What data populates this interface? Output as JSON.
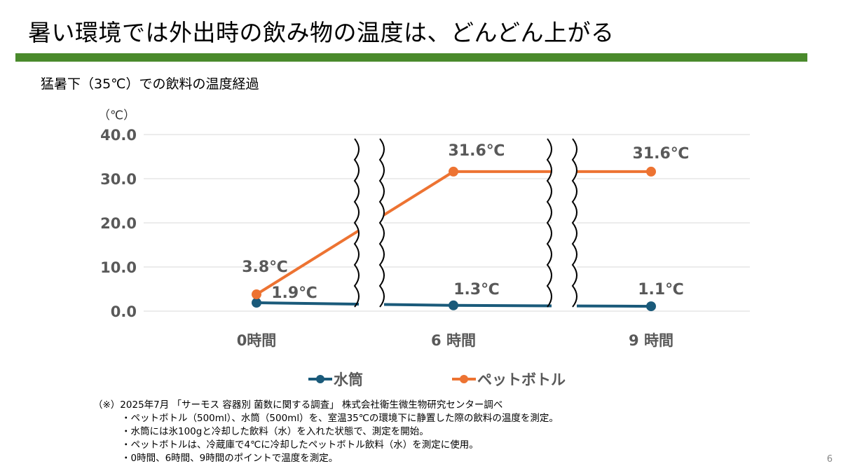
{
  "title": "暑い環境では外出時の飲み物の温度は、どんどん上がる",
  "colors": {
    "accent_bar": "#4a8a2c",
    "water_bottle": "#1a5a7a",
    "pet_bottle": "#ed7332"
  },
  "subtitle": "猛暑下（35℃）での飲料の温度経過",
  "footnotes": {
    "source": "（※）2025年7月 「サーモス 容器別 菌数に関する調査」 株式会社衛生微生物研究センター調べ",
    "notes": [
      "・ペットボトル（500ml）、水筒（500ml）を、室温35℃の環境下に静置した際の飲料の温度を測定。",
      "・水筒には氷100gと冷却した飲料（水）を入れた状態で、測定を開始。",
      "・ペットボトルは、冷蔵庫で4℃に冷却したペットボトル飲料（水）を測定に使用。",
      "・0時間、6時間、9時間のポイントで温度を測定。"
    ]
  },
  "page_number": "6",
  "chart_data": {
    "type": "line",
    "ylabel": "（℃）",
    "ylim": [
      0,
      40
    ],
    "yticks": [
      "0.0",
      "10.0",
      "20.0",
      "30.0",
      "40.0"
    ],
    "ytick_values": [
      0,
      10,
      20,
      30,
      40
    ],
    "categories": [
      "0時間",
      "6 時間",
      "9 時間"
    ],
    "axis_breaks": "between each category",
    "grid": true,
    "legend_position": "bottom",
    "series": [
      {
        "name": "水筒",
        "values": [
          1.9,
          1.3,
          1.1
        ],
        "labels": [
          "1.9℃",
          "1.3℃",
          "1.1℃"
        ]
      },
      {
        "name": "ペットボトル",
        "values": [
          3.8,
          31.6,
          31.6
        ],
        "labels": [
          "3.8℃",
          "31.6℃",
          "31.6℃"
        ]
      }
    ]
  }
}
